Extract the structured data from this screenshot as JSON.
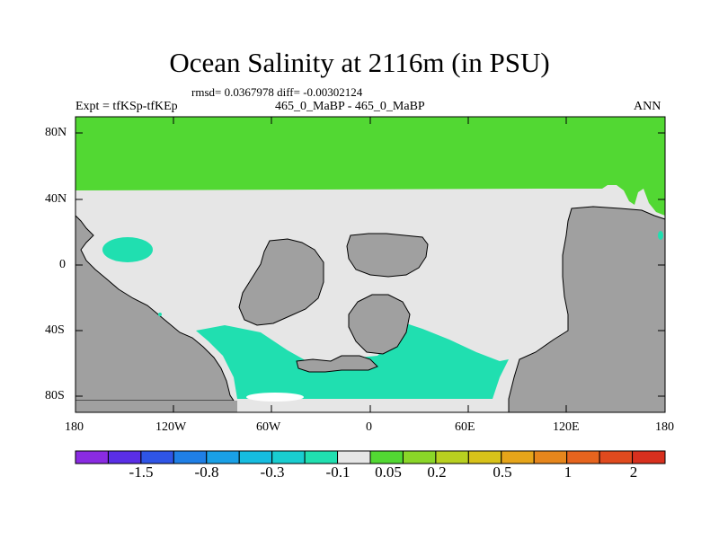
{
  "header": {
    "title": "Ocean Salinity at 2116m (in PSU)",
    "stats": "rmsd= 0.0367978 diff= -0.00302124",
    "left_label": "Expt = tfKSp-tfKEp",
    "center_label": "465_0_MaBP - 465_0_MaBP",
    "right_label": "ANN"
  },
  "axes": {
    "lat_ticks": [
      "80N",
      "40N",
      "0",
      "40S",
      "80S"
    ],
    "lon_ticks": [
      "180",
      "120W",
      "60W",
      "0",
      "60E",
      "120E",
      "180"
    ]
  },
  "colorbar": {
    "colors": [
      "#8a2be2",
      "#5a2ee6",
      "#2f55e6",
      "#1f7fe6",
      "#1aa0e6",
      "#16bde0",
      "#19cdd0",
      "#20dfb0",
      "#e6e6e6",
      "#52d833",
      "#8ad628",
      "#b8d020",
      "#d8c21a",
      "#e6a51a",
      "#e6861c",
      "#e6641e",
      "#e04a1e",
      "#d8301e"
    ],
    "labels": [
      "-1.5",
      "-0.8",
      "-0.3",
      "-0.1",
      "0.05",
      "0.2",
      "0.5",
      "1",
      "2"
    ]
  },
  "map": {
    "colors": {
      "land": "#a0a0a0",
      "near_zero": "#e6e6e6",
      "positive": "#52d833",
      "negative": "#20dfb0"
    }
  }
}
